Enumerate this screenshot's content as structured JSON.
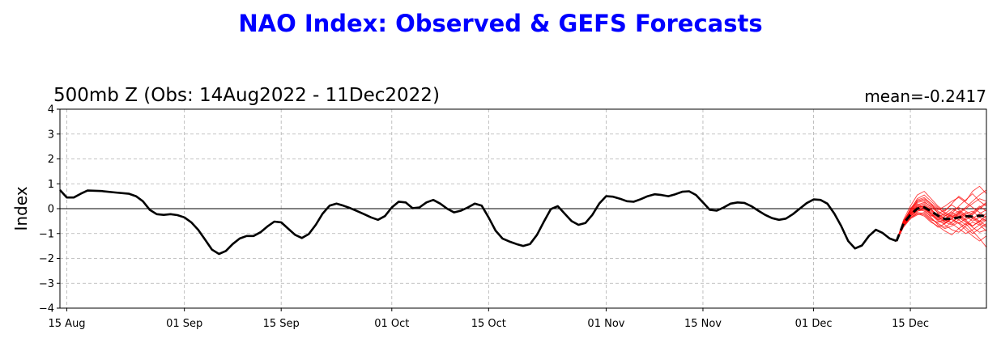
{
  "title": "NAO Index: Observed & GEFS Forecasts",
  "title_color": "#0000ff",
  "chart_data": {
    "type": "line",
    "subtitle": "500mb Z (Obs: 14Aug2022 - 11Dec2022)",
    "annotation": "mean=-0.2417",
    "ylabel": "Index",
    "ylim": [
      -4,
      4
    ],
    "yticks": [
      4,
      3,
      2,
      1,
      0,
      -1,
      -2,
      -3,
      -4
    ],
    "ytick_labels": [
      "4",
      "3",
      "2",
      "1",
      "0",
      "−1",
      "−2",
      "−3",
      "−4"
    ],
    "xlim": [
      "2022-08-14",
      "2022-12-26"
    ],
    "xticks": [
      {
        "date": "2022-08-15",
        "label": "15 Aug"
      },
      {
        "date": "2022-09-01",
        "label": "01 Sep"
      },
      {
        "date": "2022-09-15",
        "label": "15 Sep"
      },
      {
        "date": "2022-10-01",
        "label": "01 Oct"
      },
      {
        "date": "2022-10-15",
        "label": "15 Oct"
      },
      {
        "date": "2022-11-01",
        "label": "01 Nov"
      },
      {
        "date": "2022-11-15",
        "label": "15 Nov"
      },
      {
        "date": "2022-12-01",
        "label": "01 Dec"
      },
      {
        "date": "2022-12-15",
        "label": "15 Dec"
      }
    ],
    "grid": true,
    "zero_line": true,
    "colors": {
      "observed": "#000000",
      "members": "#ff0000",
      "ensemble_mean": "#000000"
    },
    "observed": {
      "name": "Observed",
      "points": [
        [
          "2022-08-14",
          0.75
        ],
        [
          "2022-08-15",
          0.45
        ],
        [
          "2022-08-16",
          0.45
        ],
        [
          "2022-08-17",
          0.6
        ],
        [
          "2022-08-18",
          0.73
        ],
        [
          "2022-08-20",
          0.71
        ],
        [
          "2022-08-22",
          0.65
        ],
        [
          "2022-08-24",
          0.6
        ],
        [
          "2022-08-25",
          0.5
        ],
        [
          "2022-08-26",
          0.3
        ],
        [
          "2022-08-27",
          -0.05
        ],
        [
          "2022-08-28",
          -0.22
        ],
        [
          "2022-08-29",
          -0.25
        ],
        [
          "2022-08-30",
          -0.22
        ],
        [
          "2022-08-31",
          -0.26
        ],
        [
          "2022-09-01",
          -0.35
        ],
        [
          "2022-09-02",
          -0.55
        ],
        [
          "2022-09-03",
          -0.85
        ],
        [
          "2022-09-04",
          -1.25
        ],
        [
          "2022-09-05",
          -1.65
        ],
        [
          "2022-09-06",
          -1.82
        ],
        [
          "2022-09-07",
          -1.7
        ],
        [
          "2022-09-08",
          -1.42
        ],
        [
          "2022-09-09",
          -1.2
        ],
        [
          "2022-09-10",
          -1.1
        ],
        [
          "2022-09-11",
          -1.1
        ],
        [
          "2022-09-12",
          -0.95
        ],
        [
          "2022-09-13",
          -0.72
        ],
        [
          "2022-09-14",
          -0.52
        ],
        [
          "2022-09-15",
          -0.55
        ],
        [
          "2022-09-16",
          -0.8
        ],
        [
          "2022-09-17",
          -1.05
        ],
        [
          "2022-09-18",
          -1.18
        ],
        [
          "2022-09-19",
          -1.02
        ],
        [
          "2022-09-20",
          -0.65
        ],
        [
          "2022-09-21",
          -0.2
        ],
        [
          "2022-09-22",
          0.12
        ],
        [
          "2022-09-23",
          0.2
        ],
        [
          "2022-09-24",
          0.12
        ],
        [
          "2022-09-25",
          0.02
        ],
        [
          "2022-09-26",
          -0.1
        ],
        [
          "2022-09-27",
          -0.22
        ],
        [
          "2022-09-28",
          -0.35
        ],
        [
          "2022-09-29",
          -0.45
        ],
        [
          "2022-09-30",
          -0.3
        ],
        [
          "2022-10-01",
          0.05
        ],
        [
          "2022-10-02",
          0.28
        ],
        [
          "2022-10-03",
          0.25
        ],
        [
          "2022-10-04",
          0.02
        ],
        [
          "2022-10-05",
          0.05
        ],
        [
          "2022-10-06",
          0.25
        ],
        [
          "2022-10-07",
          0.35
        ],
        [
          "2022-10-08",
          0.2
        ],
        [
          "2022-10-09",
          0.0
        ],
        [
          "2022-10-10",
          -0.15
        ],
        [
          "2022-10-11",
          -0.08
        ],
        [
          "2022-10-12",
          0.05
        ],
        [
          "2022-10-13",
          0.2
        ],
        [
          "2022-10-14",
          0.12
        ],
        [
          "2022-10-15",
          -0.35
        ],
        [
          "2022-10-16",
          -0.88
        ],
        [
          "2022-10-17",
          -1.2
        ],
        [
          "2022-10-18",
          -1.32
        ],
        [
          "2022-10-19",
          -1.42
        ],
        [
          "2022-10-20",
          -1.5
        ],
        [
          "2022-10-21",
          -1.42
        ],
        [
          "2022-10-22",
          -1.05
        ],
        [
          "2022-10-23",
          -0.52
        ],
        [
          "2022-10-24",
          -0.02
        ],
        [
          "2022-10-25",
          0.1
        ],
        [
          "2022-10-26",
          -0.2
        ],
        [
          "2022-10-27",
          -0.5
        ],
        [
          "2022-10-28",
          -0.65
        ],
        [
          "2022-10-29",
          -0.58
        ],
        [
          "2022-10-30",
          -0.25
        ],
        [
          "2022-10-31",
          0.2
        ],
        [
          "2022-11-01",
          0.5
        ],
        [
          "2022-11-02",
          0.48
        ],
        [
          "2022-11-03",
          0.4
        ],
        [
          "2022-11-04",
          0.3
        ],
        [
          "2022-11-05",
          0.28
        ],
        [
          "2022-11-06",
          0.38
        ],
        [
          "2022-11-07",
          0.5
        ],
        [
          "2022-11-08",
          0.58
        ],
        [
          "2022-11-09",
          0.55
        ],
        [
          "2022-11-10",
          0.5
        ],
        [
          "2022-11-11",
          0.58
        ],
        [
          "2022-11-12",
          0.68
        ],
        [
          "2022-11-13",
          0.7
        ],
        [
          "2022-11-14",
          0.55
        ],
        [
          "2022-11-15",
          0.25
        ],
        [
          "2022-11-16",
          -0.05
        ],
        [
          "2022-11-17",
          -0.08
        ],
        [
          "2022-11-18",
          0.05
        ],
        [
          "2022-11-19",
          0.2
        ],
        [
          "2022-11-20",
          0.25
        ],
        [
          "2022-11-21",
          0.23
        ],
        [
          "2022-11-22",
          0.1
        ],
        [
          "2022-11-23",
          -0.08
        ],
        [
          "2022-11-24",
          -0.25
        ],
        [
          "2022-11-25",
          -0.38
        ],
        [
          "2022-11-26",
          -0.45
        ],
        [
          "2022-11-27",
          -0.4
        ],
        [
          "2022-11-28",
          -0.22
        ],
        [
          "2022-11-29",
          0.0
        ],
        [
          "2022-11-30",
          0.22
        ],
        [
          "2022-12-01",
          0.37
        ],
        [
          "2022-12-02",
          0.35
        ],
        [
          "2022-12-03",
          0.2
        ],
        [
          "2022-12-04",
          -0.2
        ],
        [
          "2022-12-05",
          -0.7
        ],
        [
          "2022-12-06",
          -1.3
        ],
        [
          "2022-12-07",
          -1.6
        ],
        [
          "2022-12-08",
          -1.48
        ],
        [
          "2022-12-09",
          -1.1
        ],
        [
          "2022-12-10",
          -0.85
        ],
        [
          "2022-12-11",
          -0.98
        ],
        [
          "2022-12-12",
          -1.2
        ],
        [
          "2022-12-13",
          -1.3
        ]
      ]
    },
    "ensemble_mean": {
      "name": "GEFS mean",
      "points": [
        [
          "2022-12-13",
          -1.3
        ],
        [
          "2022-12-14",
          -0.6
        ],
        [
          "2022-12-15",
          -0.25
        ],
        [
          "2022-12-16",
          0.0
        ],
        [
          "2022-12-17",
          0.05
        ],
        [
          "2022-12-18",
          -0.1
        ],
        [
          "2022-12-19",
          -0.28
        ],
        [
          "2022-12-20",
          -0.42
        ],
        [
          "2022-12-21",
          -0.4
        ],
        [
          "2022-12-22",
          -0.35
        ],
        [
          "2022-12-23",
          -0.3
        ],
        [
          "2022-12-24",
          -0.32
        ],
        [
          "2022-12-25",
          -0.28
        ],
        [
          "2022-12-26",
          -0.3
        ]
      ]
    },
    "members": {
      "start": "2022-12-13",
      "step_days": 1,
      "series": [
        [
          -1.3,
          -0.45,
          0.1,
          0.55,
          0.7,
          0.4,
          0.1,
          -0.1,
          0.2,
          0.5,
          0.3,
          0.7,
          0.9,
          0.6
        ],
        [
          -1.3,
          -0.55,
          0.0,
          0.35,
          0.45,
          0.2,
          -0.2,
          -0.4,
          -0.2,
          0.1,
          0.35,
          0.6,
          0.3,
          0.1
        ],
        [
          -1.3,
          -0.7,
          -0.35,
          -0.2,
          -0.3,
          -0.55,
          -0.7,
          -0.9,
          -1.05,
          -0.8,
          -0.6,
          -0.9,
          -1.2,
          -1.55
        ],
        [
          -1.3,
          -0.5,
          -0.15,
          0.2,
          0.0,
          -0.25,
          -0.5,
          -0.6,
          -0.4,
          -0.2,
          -0.45,
          -0.7,
          -0.5,
          -0.3
        ],
        [
          -1.3,
          -0.65,
          -0.3,
          -0.1,
          -0.05,
          -0.35,
          -0.65,
          -0.8,
          -0.7,
          -0.55,
          -0.75,
          -1.0,
          -0.8,
          -0.6
        ],
        [
          -1.3,
          -0.55,
          -0.1,
          0.25,
          0.3,
          0.05,
          -0.15,
          -0.3,
          -0.1,
          0.05,
          -0.1,
          -0.25,
          0.0,
          0.2
        ],
        [
          -1.3,
          -0.6,
          -0.25,
          0.05,
          0.15,
          -0.05,
          -0.3,
          -0.55,
          -0.65,
          -0.45,
          -0.2,
          -0.1,
          -0.35,
          -0.5
        ],
        [
          -1.3,
          -0.5,
          -0.05,
          0.4,
          0.55,
          0.3,
          0.05,
          -0.2,
          -0.35,
          -0.15,
          0.05,
          0.3,
          0.55,
          0.75
        ],
        [
          -1.3,
          -0.75,
          -0.4,
          -0.25,
          -0.15,
          -0.4,
          -0.6,
          -0.75,
          -0.55,
          -0.3,
          -0.5,
          -0.75,
          -0.95,
          -0.85
        ],
        [
          -1.3,
          -0.6,
          -0.2,
          0.1,
          0.2,
          0.0,
          -0.35,
          -0.5,
          -0.3,
          -0.45,
          -0.65,
          -0.4,
          -0.2,
          -0.05
        ],
        [
          -1.3,
          -0.55,
          -0.15,
          0.15,
          0.25,
          0.1,
          -0.1,
          -0.25,
          -0.45,
          -0.6,
          -0.4,
          -0.15,
          0.1,
          -0.1
        ],
        [
          -1.3,
          -0.7,
          -0.3,
          -0.05,
          0.05,
          -0.2,
          -0.45,
          -0.65,
          -0.85,
          -0.95,
          -0.7,
          -0.55,
          -0.65,
          -0.9
        ],
        [
          -1.3,
          -0.6,
          -0.2,
          0.0,
          -0.1,
          -0.3,
          -0.2,
          -0.05,
          0.15,
          -0.05,
          -0.25,
          -0.4,
          -0.6,
          -0.75
        ],
        [
          -1.3,
          -0.5,
          -0.1,
          0.3,
          0.35,
          0.15,
          -0.05,
          0.1,
          0.3,
          0.45,
          0.25,
          0.05,
          -0.15,
          -0.35
        ],
        [
          -1.3,
          -0.65,
          -0.35,
          -0.15,
          -0.2,
          -0.45,
          -0.55,
          -0.45,
          -0.6,
          -0.8,
          -1.0,
          -0.85,
          -0.65,
          -0.45
        ],
        [
          -1.3,
          -0.55,
          -0.2,
          0.1,
          0.05,
          -0.15,
          -0.35,
          -0.2,
          0.0,
          -0.15,
          -0.35,
          -0.2,
          0.05,
          0.25
        ],
        [
          -1.3,
          -0.6,
          -0.25,
          0.0,
          0.1,
          -0.05,
          -0.25,
          -0.4,
          -0.25,
          -0.1,
          -0.3,
          -0.5,
          -0.35,
          -0.2
        ],
        [
          -1.3,
          -0.7,
          -0.4,
          -0.2,
          -0.25,
          -0.5,
          -0.75,
          -0.6,
          -0.4,
          -0.6,
          -0.85,
          -1.1,
          -1.3,
          -1.1
        ],
        [
          -1.3,
          -0.5,
          -0.05,
          0.3,
          0.4,
          0.2,
          0.0,
          -0.15,
          -0.3,
          -0.2,
          0.0,
          0.2,
          0.4,
          0.3
        ],
        [
          -1.3,
          -0.6,
          -0.3,
          -0.05,
          0.0,
          -0.2,
          -0.4,
          -0.55,
          -0.4,
          -0.25,
          -0.45,
          -0.3,
          -0.5,
          -0.7
        ],
        [
          -1.3,
          -0.55,
          -0.2,
          0.05,
          0.1,
          -0.1,
          -0.3,
          -0.45,
          -0.55,
          -0.35,
          -0.15,
          -0.35,
          -0.55,
          -0.4
        ],
        [
          -1.3,
          -0.65,
          -0.3,
          -0.1,
          0.0,
          -0.25,
          -0.45,
          -0.3,
          -0.15,
          -0.35,
          -0.55,
          -0.7,
          -0.5,
          -0.3
        ]
      ]
    }
  }
}
